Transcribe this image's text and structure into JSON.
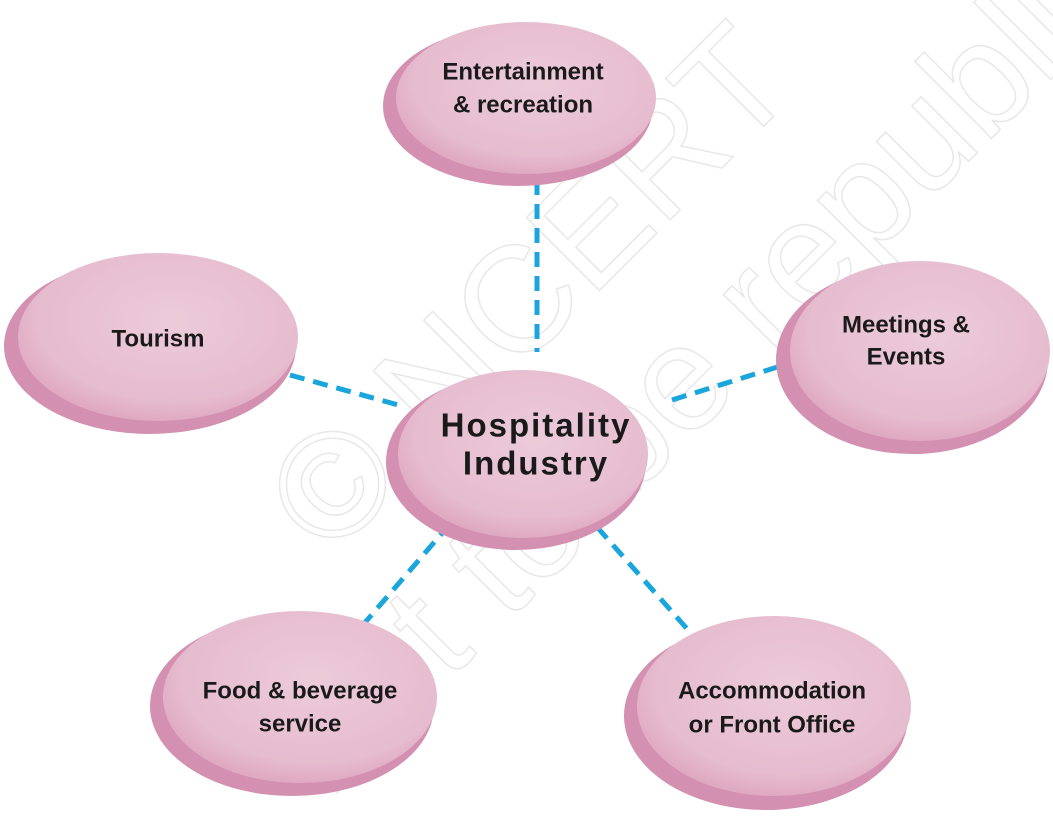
{
  "nodes": [
    {
      "lines": [
        "Hospitality",
        "Industry"
      ]
    },
    {
      "lines": [
        "Entertainment",
        "& recreation"
      ]
    },
    {
      "lines": [
        "Tourism"
      ]
    },
    {
      "lines": [
        "Meetings &",
        "Events"
      ]
    },
    {
      "lines": [
        "Food & beverage",
        "service"
      ]
    },
    {
      "lines": [
        "Accommodation",
        "or Front Office"
      ]
    }
  ],
  "watermark": [
    "© NCERT",
    "not to be republished"
  ]
}
